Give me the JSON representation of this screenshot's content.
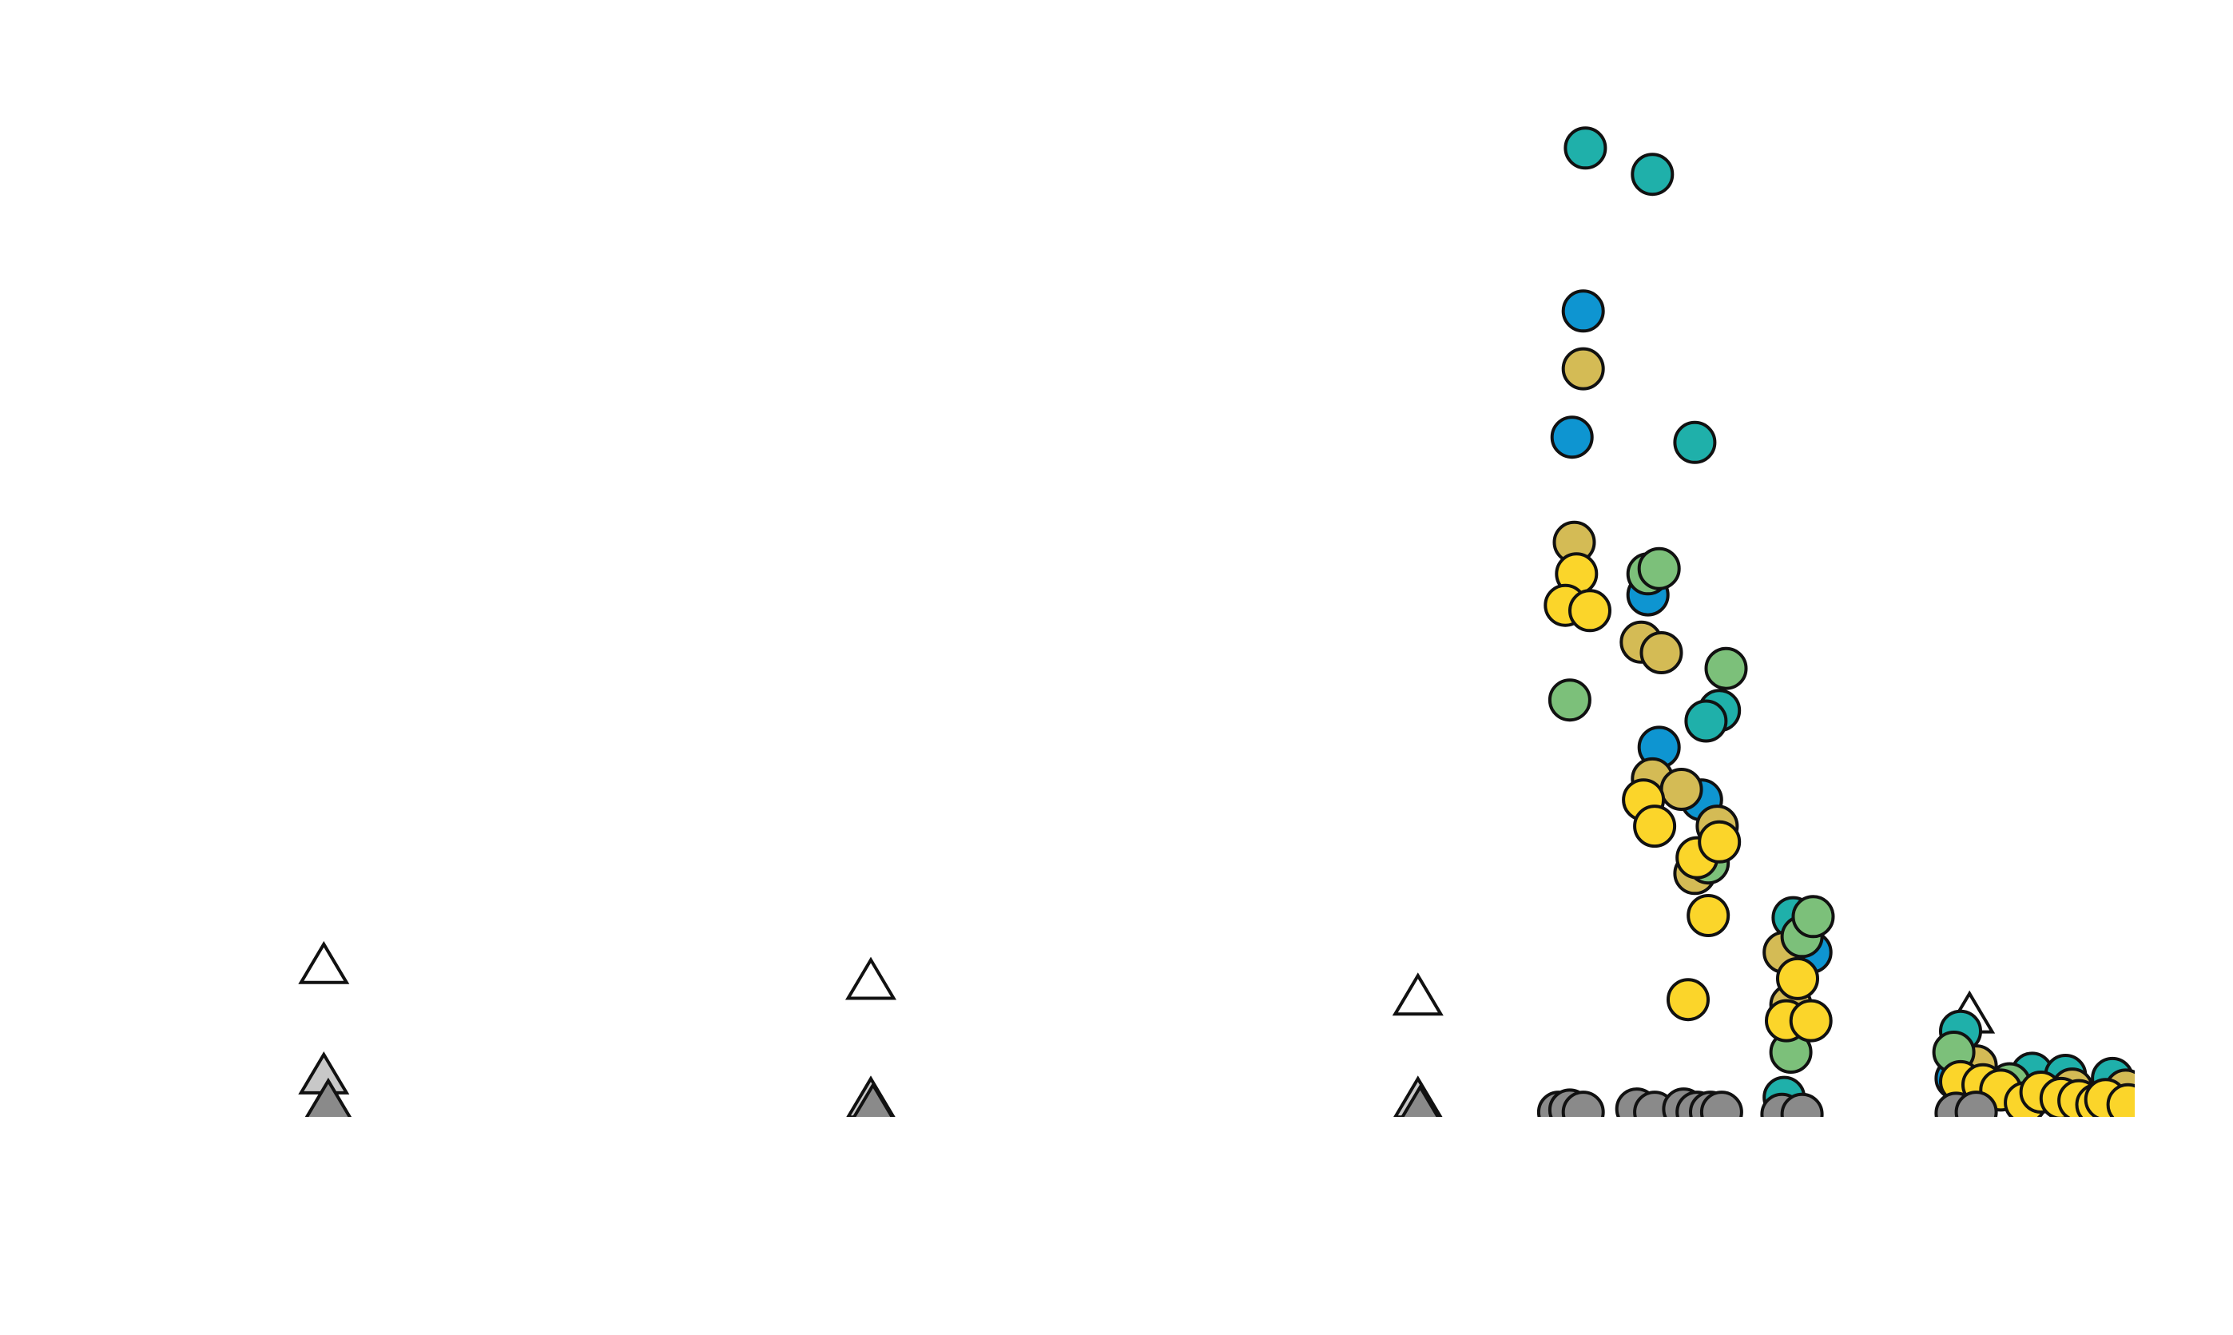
{
  "chart_data": {
    "type": "scatter",
    "title": "",
    "xlabel": "",
    "ylabel": "",
    "grid": false,
    "legend": "none",
    "xlim": [
      0,
      100
    ],
    "ylim": [
      0,
      100
    ],
    "marker_stroke": "#111111",
    "series": [
      {
        "marker": "triangle",
        "color": "#ffffff",
        "points": [
          [
            14.5,
            14.0
          ],
          [
            39.0,
            12.5
          ],
          [
            63.5,
            11.0
          ],
          [
            88.2,
            9.3
          ]
        ]
      },
      {
        "marker": "triangle",
        "color": "#c8c8c8",
        "points": [
          [
            14.5,
            3.5
          ],
          [
            39.0,
            1.2
          ],
          [
            63.5,
            1.2
          ],
          [
            88.2,
            0.8
          ]
        ]
      },
      {
        "marker": "triangle",
        "color": "#8a8a8a",
        "points": [
          [
            14.7,
            1.0
          ],
          [
            39.1,
            0.6
          ],
          [
            63.6,
            0.4
          ],
          [
            88.3,
            0.6
          ]
        ]
      },
      {
        "marker": "circle",
        "color": "#1fb0aa",
        "points": [
          [
            71.0,
            92.0
          ],
          [
            74.0,
            89.5
          ],
          [
            75.9,
            64.0
          ],
          [
            77.0,
            38.5
          ],
          [
            76.4,
            37.5
          ],
          [
            80.3,
            18.8
          ],
          [
            79.9,
            1.7
          ],
          [
            87.8,
            8.0
          ],
          [
            91.0,
            4.0
          ],
          [
            92.5,
            3.8
          ],
          [
            94.6,
            3.5
          ]
        ]
      },
      {
        "marker": "circle",
        "color": "#0e95d1",
        "points": [
          [
            70.9,
            76.5
          ],
          [
            70.4,
            64.5
          ],
          [
            73.8,
            49.5
          ],
          [
            74.3,
            35.0
          ],
          [
            76.2,
            30.0
          ],
          [
            81.1,
            15.5
          ],
          [
            87.6,
            3.5
          ]
        ]
      },
      {
        "marker": "circle",
        "color": "#d4bb55",
        "points": [
          [
            70.9,
            71.0
          ],
          [
            70.5,
            54.5
          ],
          [
            73.5,
            45.0
          ],
          [
            74.4,
            44.0
          ],
          [
            74.0,
            32.0
          ],
          [
            75.3,
            31.0
          ],
          [
            76.9,
            27.5
          ],
          [
            75.9,
            23.0
          ],
          [
            79.9,
            15.5
          ],
          [
            80.2,
            10.5
          ],
          [
            88.5,
            4.7
          ],
          [
            92.8,
            2.5
          ],
          [
            95.2,
            2.4
          ]
        ]
      },
      {
        "marker": "circle",
        "color": "#7cc07a",
        "points": [
          [
            70.3,
            39.5
          ],
          [
            73.8,
            51.5
          ],
          [
            74.3,
            52.0
          ],
          [
            77.3,
            42.5
          ],
          [
            76.5,
            24.0
          ],
          [
            80.7,
            17.0
          ],
          [
            81.2,
            18.9
          ],
          [
            80.2,
            6.0
          ],
          [
            87.5,
            6.0
          ],
          [
            90.0,
            3.0
          ]
        ]
      },
      {
        "marker": "circle",
        "color": "#fbd52a",
        "points": [
          [
            70.6,
            51.5
          ],
          [
            70.1,
            48.5
          ],
          [
            71.2,
            48.0
          ],
          [
            73.6,
            30.0
          ],
          [
            74.1,
            27.5
          ],
          [
            76.0,
            24.5
          ],
          [
            77.0,
            26.0
          ],
          [
            76.5,
            19.0
          ],
          [
            75.6,
            11.0
          ],
          [
            80.5,
            13.0
          ],
          [
            80.0,
            9.0
          ],
          [
            81.1,
            9.0
          ],
          [
            87.8,
            3.2
          ],
          [
            88.8,
            2.9
          ],
          [
            89.6,
            2.4
          ],
          [
            90.7,
            1.2
          ],
          [
            91.4,
            2.2
          ],
          [
            92.3,
            1.6
          ],
          [
            93.1,
            1.4
          ],
          [
            93.9,
            1.0
          ],
          [
            94.3,
            1.5
          ],
          [
            95.3,
            1.0
          ]
        ]
      },
      {
        "marker": "circle",
        "color": "#8a8a8a",
        "points": [
          [
            69.8,
            0.3
          ],
          [
            70.3,
            0.5
          ],
          [
            70.9,
            0.3
          ],
          [
            73.3,
            0.6
          ],
          [
            74.1,
            0.3
          ],
          [
            75.4,
            0.6
          ],
          [
            76.0,
            0.3
          ],
          [
            76.6,
            0.3
          ],
          [
            77.1,
            0.3
          ],
          [
            79.8,
            0.1
          ],
          [
            80.7,
            0.1
          ],
          [
            87.6,
            0.2
          ],
          [
            88.5,
            0.3
          ]
        ]
      }
    ]
  }
}
